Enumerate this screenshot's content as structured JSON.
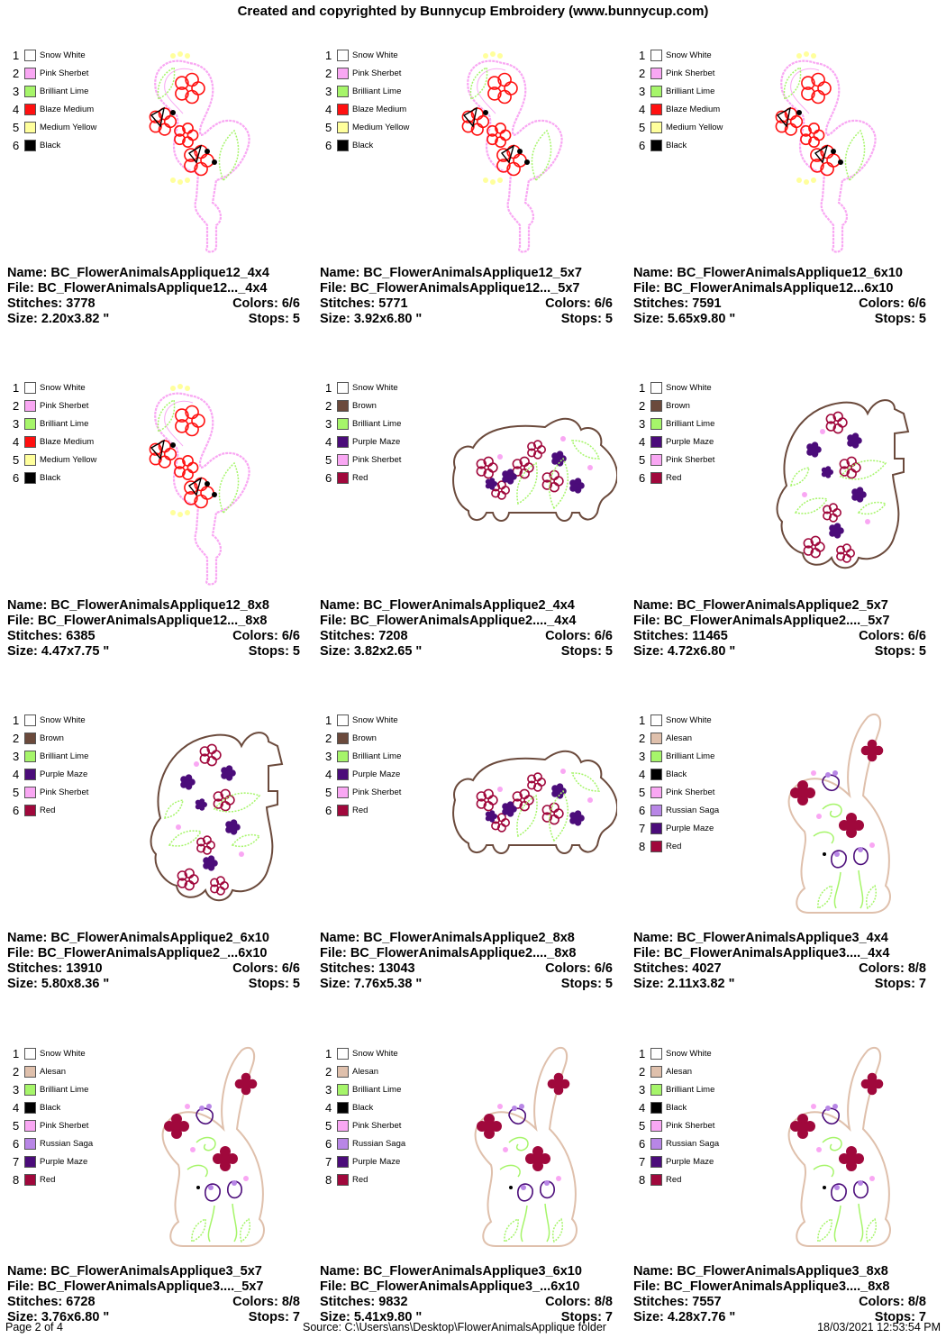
{
  "header": "Created and copyrighted by Bunnycup Embroidery (www.bunnycup.com)",
  "palettes": {
    "flamingo": [
      {
        "num": "1",
        "name": "Snow White",
        "color": "#ffffff"
      },
      {
        "num": "2",
        "name": "Pink Sherbet",
        "color": "#f9a7f3"
      },
      {
        "num": "3",
        "name": "Brilliant Lime",
        "color": "#a6f56a"
      },
      {
        "num": "4",
        "name": "Blaze Medium",
        "color": "#ff1010"
      },
      {
        "num": "5",
        "name": "Medium Yellow",
        "color": "#ffff9c"
      },
      {
        "num": "6",
        "name": "Black",
        "color": "#000000"
      }
    ],
    "elephant": [
      {
        "num": "1",
        "name": "Snow White",
        "color": "#ffffff"
      },
      {
        "num": "2",
        "name": "Brown",
        "color": "#6b4a3c"
      },
      {
        "num": "3",
        "name": "Brilliant Lime",
        "color": "#a6f56a"
      },
      {
        "num": "4",
        "name": "Purple Maze",
        "color": "#4b0c7a"
      },
      {
        "num": "5",
        "name": "Pink Sherbet",
        "color": "#f9a7f3"
      },
      {
        "num": "6",
        "name": "Red",
        "color": "#a0083c"
      }
    ],
    "bunny": [
      {
        "num": "1",
        "name": "Snow White",
        "color": "#ffffff"
      },
      {
        "num": "2",
        "name": "Alesan",
        "color": "#dfc0ac"
      },
      {
        "num": "3",
        "name": "Brilliant Lime",
        "color": "#a6f56a"
      },
      {
        "num": "4",
        "name": "Black",
        "color": "#000000"
      },
      {
        "num": "5",
        "name": "Pink Sherbet",
        "color": "#f9a7f3"
      },
      {
        "num": "6",
        "name": "Russian Saga",
        "color": "#b886e6"
      },
      {
        "num": "7",
        "name": "Purple Maze",
        "color": "#4b0c7a"
      },
      {
        "num": "8",
        "name": "Red",
        "color": "#a0083c"
      }
    ]
  },
  "designs": [
    {
      "kind": "flamingo",
      "variant": "a",
      "name": "Name: BC_FlowerAnimalsApplique12_4x4",
      "file": "File: BC_FlowerAnimalsApplique12..._4x4",
      "stitches": "Stitches: 3778",
      "colors": "Colors: 6/6",
      "size": "Size: 2.20x3.82 \"",
      "stops": "Stops: 5"
    },
    {
      "kind": "flamingo",
      "variant": "a",
      "name": "Name: BC_FlowerAnimalsApplique12_5x7",
      "file": "File: BC_FlowerAnimalsApplique12..._5x7",
      "stitches": "Stitches: 5771",
      "colors": "Colors: 6/6",
      "size": "Size: 3.92x6.80 \"",
      "stops": "Stops: 5"
    },
    {
      "kind": "flamingo",
      "variant": "a",
      "name": "Name: BC_FlowerAnimalsApplique12_6x10",
      "file": "File: BC_FlowerAnimalsApplique12...6x10",
      "stitches": "Stitches: 7591",
      "colors": "Colors: 6/6",
      "size": "Size: 5.65x9.80 \"",
      "stops": "Stops: 5"
    },
    {
      "kind": "flamingo",
      "variant": "a",
      "name": "Name: BC_FlowerAnimalsApplique12_8x8",
      "file": "File: BC_FlowerAnimalsApplique12..._8x8",
      "stitches": "Stitches: 6385",
      "colors": "Colors: 6/6",
      "size": "Size: 4.47x7.75 \"",
      "stops": "Stops: 5"
    },
    {
      "kind": "elephant",
      "variant": "wide",
      "name": "Name: BC_FlowerAnimalsApplique2_4x4",
      "file": "File: BC_FlowerAnimalsApplique2...._4x4",
      "stitches": "Stitches: 7208",
      "colors": "Colors: 6/6",
      "size": "Size: 3.82x2.65 \"",
      "stops": "Stops: 5"
    },
    {
      "kind": "elephant",
      "variant": "tall",
      "name": "Name: BC_FlowerAnimalsApplique2_5x7",
      "file": "File: BC_FlowerAnimalsApplique2...._5x7",
      "stitches": "Stitches: 11465",
      "colors": "Colors: 6/6",
      "size": "Size: 4.72x6.80 \"",
      "stops": "Stops: 5"
    },
    {
      "kind": "elephant",
      "variant": "tall",
      "name": "Name: BC_FlowerAnimalsApplique2_6x10",
      "file": "File: BC_FlowerAnimalsApplique2_...6x10",
      "stitches": "Stitches: 13910",
      "colors": "Colors: 6/6",
      "size": "Size: 5.80x8.36 \"",
      "stops": "Stops: 5"
    },
    {
      "kind": "elephant",
      "variant": "wide",
      "name": "Name: BC_FlowerAnimalsApplique2_8x8",
      "file": "File: BC_FlowerAnimalsApplique2...._8x8",
      "stitches": "Stitches: 13043",
      "colors": "Colors: 6/6",
      "size": "Size: 7.76x5.38 \"",
      "stops": "Stops: 5"
    },
    {
      "kind": "bunny",
      "variant": "a",
      "name": "Name: BC_FlowerAnimalsApplique3_4x4",
      "file": "File: BC_FlowerAnimalsApplique3...._4x4",
      "stitches": "Stitches: 4027",
      "colors": "Colors: 8/8",
      "size": "Size: 2.11x3.82 \"",
      "stops": "Stops: 7"
    },
    {
      "kind": "bunny",
      "variant": "a",
      "name": "Name: BC_FlowerAnimalsApplique3_5x7",
      "file": "File: BC_FlowerAnimalsApplique3...._5x7",
      "stitches": "Stitches: 6728",
      "colors": "Colors: 8/8",
      "size": "Size: 3.76x6.80 \"",
      "stops": "Stops: 7"
    },
    {
      "kind": "bunny",
      "variant": "a",
      "name": "Name: BC_FlowerAnimalsApplique3_6x10",
      "file": "File: BC_FlowerAnimalsApplique3_...6x10",
      "stitches": "Stitches: 9832",
      "colors": "Colors: 8/8",
      "size": "Size: 5.41x9.80 \"",
      "stops": "Stops: 7"
    },
    {
      "kind": "bunny",
      "variant": "a",
      "name": "Name: BC_FlowerAnimalsApplique3_8x8",
      "file": "File: BC_FlowerAnimalsApplique3...._8x8",
      "stitches": "Stitches: 7557",
      "colors": "Colors: 8/8",
      "size": "Size: 4.28x7.76 \"",
      "stops": "Stops: 7"
    }
  ],
  "footer": {
    "page": "Page 2 of 4",
    "source": "Source: C:\\Users\\ans\\Desktop\\FlowerAnimalsApplique folder",
    "timestamp": "18/03/2021 12:53:54 PM"
  }
}
